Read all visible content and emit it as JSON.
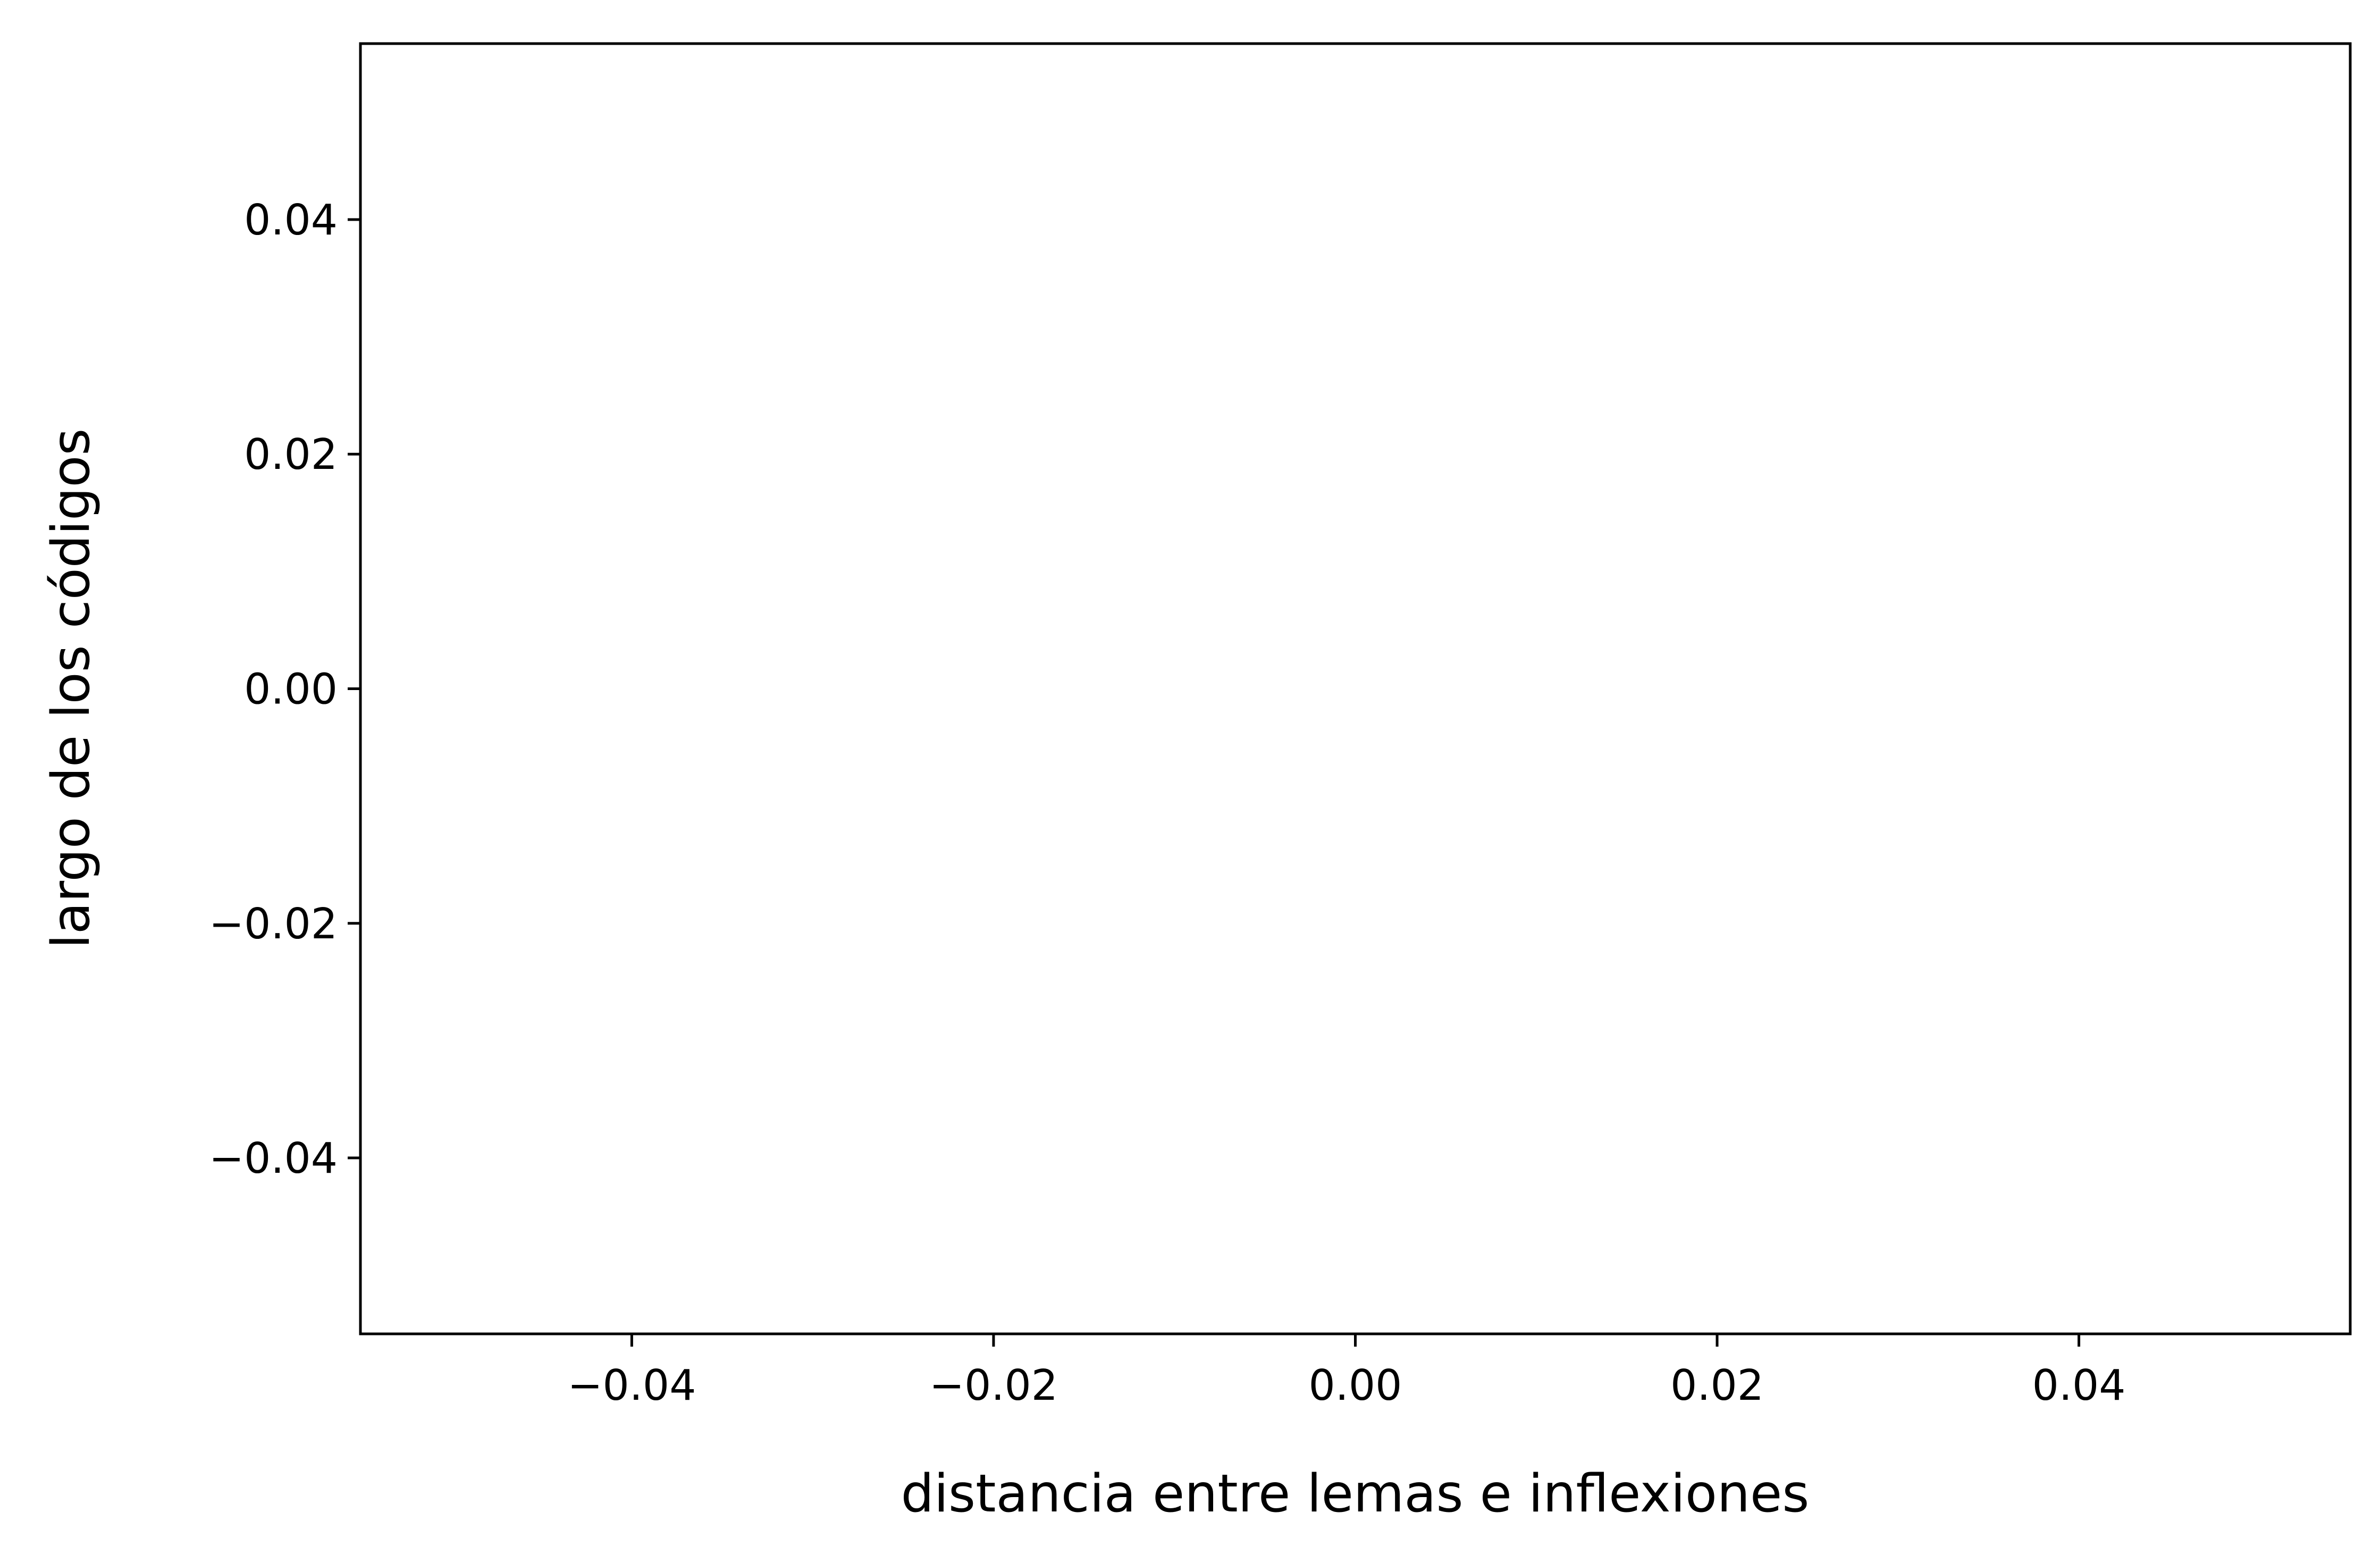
{
  "chart_data": {
    "type": "scatter",
    "title": "",
    "xlabel": "distancia entre lemas e inflexiones",
    "ylabel": "largo de los códigos",
    "xlim": [
      -0.055,
      0.055
    ],
    "ylim": [
      -0.055,
      0.055
    ],
    "x_ticks": [
      -0.04,
      -0.02,
      0.0,
      0.02,
      0.04
    ],
    "x_tick_labels": [
      "−0.04",
      "−0.02",
      "0.00",
      "0.02",
      "0.04"
    ],
    "y_ticks": [
      -0.04,
      -0.02,
      0.0,
      0.02,
      0.04
    ],
    "y_tick_labels": [
      "−0.04",
      "−0.02",
      "0.00",
      "0.02",
      "0.04"
    ],
    "series": [
      {
        "x": [],
        "y": []
      }
    ],
    "grid": false,
    "legend": "none",
    "colors": {
      "axes": "#000000",
      "background": "#ffffff"
    }
  }
}
